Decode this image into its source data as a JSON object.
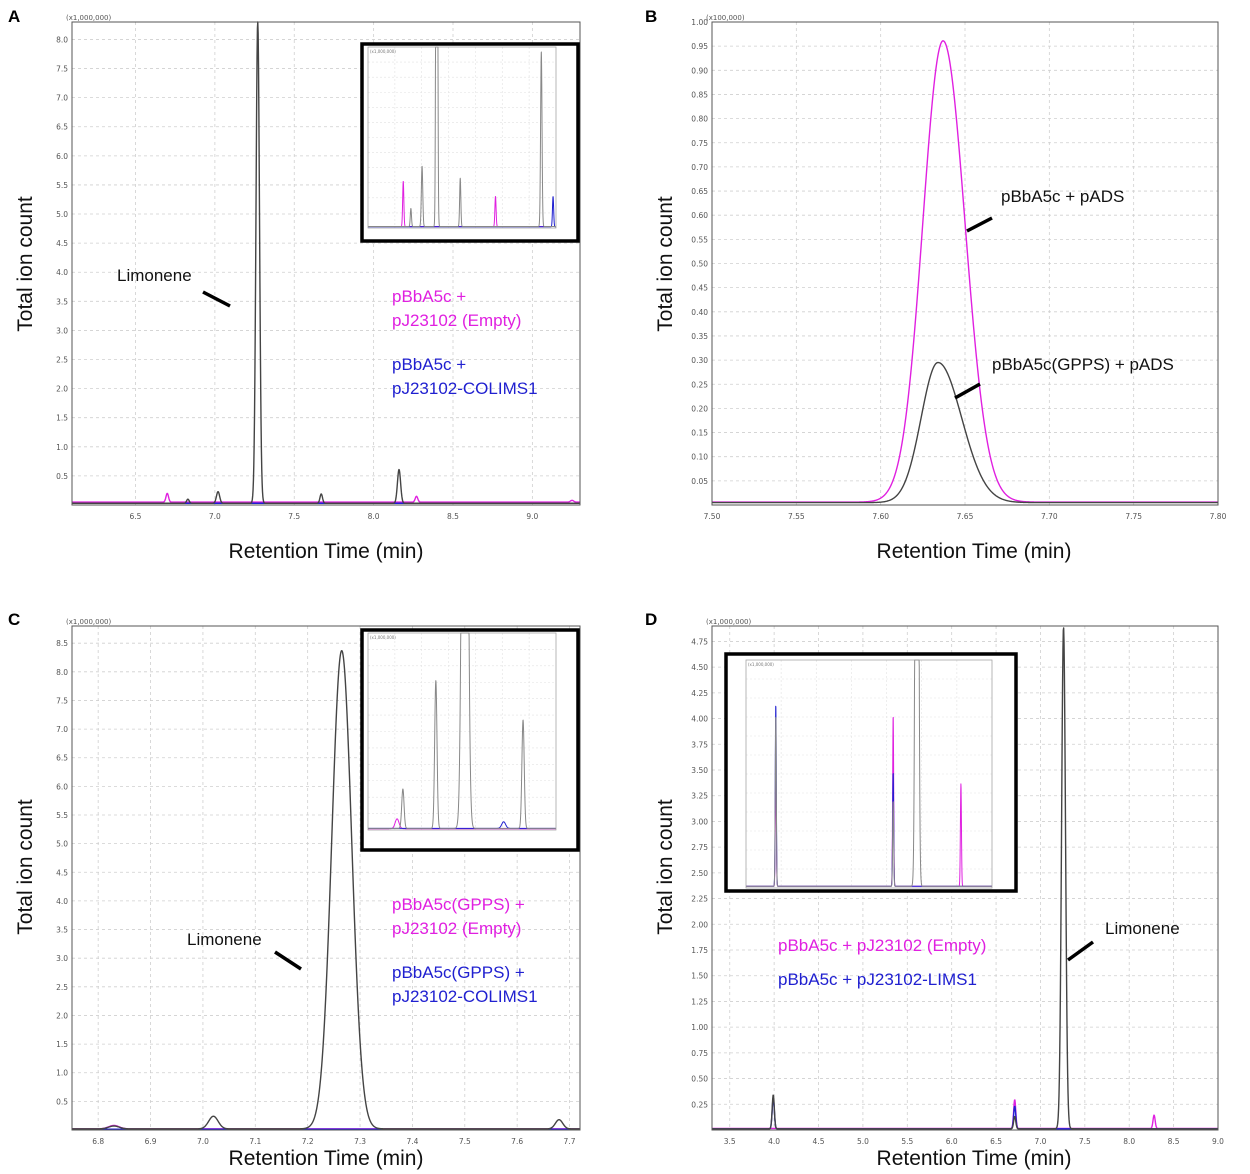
{
  "chart_data": [
    {
      "panel": "A",
      "type": "line",
      "xlabel": "Retention Time (min)",
      "ylabel": "Total ion count",
      "multiplier": "(x1,000,000)",
      "xlim": [
        6.1,
        9.3
      ],
      "ylim": [
        0,
        8.3
      ],
      "xticks": [
        6.5,
        7.0,
        7.5,
        8.0,
        8.5,
        9.0
      ],
      "yticks": [
        0.5,
        1.0,
        1.5,
        2.0,
        2.5,
        3.0,
        3.5,
        4.0,
        4.5,
        5.0,
        5.5,
        6.0,
        6.5,
        7.0,
        7.5,
        8.0
      ],
      "tick_decimals": 1,
      "grid": true,
      "series": [
        {
          "name": "pBbA5c + pJ23102 (Empty)",
          "color": "#e020e0",
          "baseline": 0.05,
          "peaks": [
            {
              "x": 6.7,
              "h": 0.15,
              "w": 0.008
            },
            {
              "x": 8.27,
              "h": 0.1,
              "w": 0.008
            },
            {
              "x": 9.25,
              "h": 0.03,
              "w": 0.01
            }
          ]
        },
        {
          "name": "pBbA5c + pJ23102-COLIMS1",
          "color": "#2020d0",
          "baseline": 0.03,
          "peaks": []
        },
        {
          "name": "",
          "color": "#444444",
          "baseline": 0.03,
          "peaks": [
            {
              "x": 6.83,
              "h": 0.07,
              "w": 0.008
            },
            {
              "x": 7.02,
              "h": 0.2,
              "w": 0.01
            },
            {
              "x": 7.27,
              "h": 8.3,
              "w": 0.011
            },
            {
              "x": 7.67,
              "h": 0.16,
              "w": 0.008
            },
            {
              "x": 8.16,
              "h": 0.58,
              "w": 0.01
            }
          ]
        }
      ],
      "annotations": [
        {
          "text": "Limonene"
        }
      ],
      "legend": [
        "pBbA5c +",
        "pJ23102 (Empty)",
        "pBbA5c +",
        "pJ23102-COLIMS1"
      ],
      "inset": {
        "multiplier": "(x1,000,000)",
        "xlim": [
          6.1,
          9.3
        ],
        "ylim": [
          0,
          0.6
        ],
        "series": [
          {
            "color": "#e020e0",
            "baseline": 0.005,
            "peaks": [
              {
                "x": 6.7,
                "h": 0.15,
                "w": 0.01
              },
              {
                "x": 8.27,
                "h": 0.1,
                "w": 0.01
              }
            ]
          },
          {
            "color": "#2020d0",
            "baseline": 0.004,
            "peaks": [
              {
                "x": 9.25,
                "h": 0.1,
                "w": 0.01
              }
            ]
          },
          {
            "color": "#888888",
            "baseline": 0.005,
            "peaks": [
              {
                "x": 6.83,
                "h": 0.06,
                "w": 0.01
              },
              {
                "x": 7.02,
                "h": 0.2,
                "w": 0.012
              },
              {
                "x": 7.27,
                "h": 3.0,
                "w": 0.012
              },
              {
                "x": 7.67,
                "h": 0.16,
                "w": 0.01
              },
              {
                "x": 9.05,
                "h": 0.58,
                "w": 0.012
              }
            ]
          }
        ]
      }
    },
    {
      "panel": "B",
      "type": "line",
      "xlabel": "Retention Time (min)",
      "ylabel": "Total ion count",
      "multiplier": "(x100,000)",
      "xlim": [
        7.5,
        7.8
      ],
      "ylim": [
        0,
        1.0
      ],
      "xticks": [
        7.5,
        7.55,
        7.6,
        7.65,
        7.7,
        7.75,
        7.8
      ],
      "yticks": [
        0.05,
        0.1,
        0.15,
        0.2,
        0.25,
        0.3,
        0.35,
        0.4,
        0.45,
        0.5,
        0.55,
        0.6,
        0.65,
        0.7,
        0.75,
        0.8,
        0.85,
        0.9,
        0.95,
        1.0
      ],
      "tick_decimals": 2,
      "grid": true,
      "series": [
        {
          "name": "pBbA5c + pADS",
          "color": "#e020e0",
          "baseline": 0.006,
          "peaks": [
            {
              "x": 7.637,
              "h": 0.955,
              "w": 0.012,
              "w2": 0.013
            }
          ]
        },
        {
          "name": "pBbA5c(GPPS) + pADS",
          "color": "#444444",
          "baseline": 0.005,
          "peaks": [
            {
              "x": 7.634,
              "h": 0.29,
              "w": 0.01,
              "w2": 0.014
            }
          ]
        }
      ],
      "annotations": [
        {
          "text": "pBbA5c + pADS"
        },
        {
          "text": "pBbA5c(GPPS) + pADS"
        }
      ]
    },
    {
      "panel": "C",
      "type": "line",
      "xlabel": "Retention Time (min)",
      "ylabel": "Total ion count",
      "multiplier": "(x1,000,000)",
      "xlim": [
        6.75,
        7.72
      ],
      "ylim": [
        0,
        8.8
      ],
      "xticks": [
        6.8,
        6.9,
        7.0,
        7.1,
        7.2,
        7.3,
        7.4,
        7.5,
        7.6,
        7.7
      ],
      "yticks": [
        0.5,
        1.0,
        1.5,
        2.0,
        2.5,
        3.0,
        3.5,
        4.0,
        4.5,
        5.0,
        5.5,
        6.0,
        6.5,
        7.0,
        7.5,
        8.0,
        8.5
      ],
      "tick_decimals": 1,
      "grid": true,
      "series": [
        {
          "name": "pBbA5c(GPPS) + pJ23102 (Empty)",
          "color": "#e020e0",
          "baseline": 0.02,
          "peaks": [
            {
              "x": 6.83,
              "h": 0.06,
              "w": 0.01
            }
          ]
        },
        {
          "name": "pBbA5c(GPPS) + pJ23102-COLIMS1",
          "color": "#2020d0",
          "baseline": 0.015,
          "peaks": []
        },
        {
          "name": "",
          "color": "#444444",
          "baseline": 0.02,
          "peaks": [
            {
              "x": 6.83,
              "h": 0.05,
              "w": 0.01
            },
            {
              "x": 7.02,
              "h": 0.22,
              "w": 0.009
            },
            {
              "x": 7.265,
              "h": 8.35,
              "w": 0.019
            },
            {
              "x": 7.68,
              "h": 0.16,
              "w": 0.007
            }
          ]
        }
      ],
      "annotations": [
        {
          "text": "Limonene"
        }
      ],
      "legend": [
        "pBbA5c(GPPS) +",
        "pJ23102 (Empty)",
        "pBbA5c(GPPS) +",
        "pJ23102-COLIMS1"
      ],
      "inset": {
        "multiplier": "(x1,000,000)",
        "xlim": [
          6.75,
          7.72
        ],
        "ylim": [
          0,
          0.6
        ],
        "series": [
          {
            "color": "#e020e0",
            "baseline": 0.004,
            "peaks": [
              {
                "x": 6.9,
                "h": 0.03,
                "w": 0.01
              }
            ]
          },
          {
            "color": "#2020d0",
            "baseline": 0.005,
            "peaks": [
              {
                "x": 7.45,
                "h": 0.02,
                "w": 0.01
              }
            ]
          },
          {
            "color": "#888888",
            "baseline": 0.005,
            "peaks": [
              {
                "x": 6.93,
                "h": 0.12,
                "w": 0.006
              },
              {
                "x": 7.1,
                "h": 0.45,
                "w": 0.006
              },
              {
                "x": 7.25,
                "h": 3.0,
                "w": 0.012
              },
              {
                "x": 7.55,
                "h": 0.33,
                "w": 0.006
              }
            ]
          }
        ]
      }
    },
    {
      "panel": "D",
      "type": "line",
      "xlabel": "Retention Time (min)",
      "ylabel": "Total ion count",
      "multiplier": "(x1,000,000)",
      "xlim": [
        3.3,
        9.0
      ],
      "ylim": [
        0,
        4.9
      ],
      "xticks": [
        3.5,
        4.0,
        4.5,
        5.0,
        5.5,
        6.0,
        6.5,
        7.0,
        7.5,
        8.0,
        8.5,
        9.0
      ],
      "yticks": [
        0.25,
        0.5,
        0.75,
        1.0,
        1.25,
        1.5,
        1.75,
        2.0,
        2.25,
        2.5,
        2.75,
        3.0,
        3.25,
        3.5,
        3.75,
        4.0,
        4.25,
        4.5,
        4.75
      ],
      "tick_decimals": 2,
      "grid": true,
      "series": [
        {
          "name": "pBbA5c + pJ23102 (Empty)",
          "color": "#e020e0",
          "baseline": 0.015,
          "peaks": [
            {
              "x": 6.71,
              "h": 0.28,
              "w": 0.012
            },
            {
              "x": 8.28,
              "h": 0.13,
              "w": 0.012
            }
          ]
        },
        {
          "name": "pBbA5c + pJ23102-LIMS1",
          "color": "#2020d0",
          "baseline": 0.012,
          "peaks": [
            {
              "x": 3.99,
              "h": 0.3,
              "w": 0.012
            },
            {
              "x": 6.71,
              "h": 0.22,
              "w": 0.012
            }
          ]
        },
        {
          "name": "",
          "color": "#444444",
          "baseline": 0.012,
          "peaks": [
            {
              "x": 3.99,
              "h": 0.33,
              "w": 0.012
            },
            {
              "x": 6.71,
              "h": 0.12,
              "w": 0.012
            },
            {
              "x": 7.26,
              "h": 4.88,
              "w": 0.022
            }
          ]
        }
      ],
      "annotations": [
        {
          "text": "Limonene"
        }
      ],
      "legend": [
        "pBbA5c + pJ23102 (Empty)",
        "pBbA5c + pJ23102-LIMS1"
      ],
      "inset": {
        "multiplier": "(x1,000,000)",
        "xlim": [
          3.3,
          9.0
        ],
        "ylim": [
          0,
          0.4
        ],
        "series": [
          {
            "color": "#e020e0",
            "baseline": 0.003,
            "peaks": [
              {
                "x": 3.99,
                "h": 0.2,
                "w": 0.012
              },
              {
                "x": 6.71,
                "h": 0.3,
                "w": 0.012
              },
              {
                "x": 8.28,
                "h": 0.18,
                "w": 0.012
              }
            ]
          },
          {
            "color": "#2020d0",
            "baseline": 0.003,
            "peaks": [
              {
                "x": 3.99,
                "h": 0.32,
                "w": 0.012
              },
              {
                "x": 6.71,
                "h": 0.2,
                "w": 0.012
              }
            ]
          },
          {
            "color": "#888888",
            "baseline": 0.003,
            "peaks": [
              {
                "x": 3.99,
                "h": 0.3,
                "w": 0.012
              },
              {
                "x": 6.71,
                "h": 0.15,
                "w": 0.012
              },
              {
                "x": 7.26,
                "h": 2.0,
                "w": 0.03
              }
            ]
          }
        ]
      }
    }
  ]
}
